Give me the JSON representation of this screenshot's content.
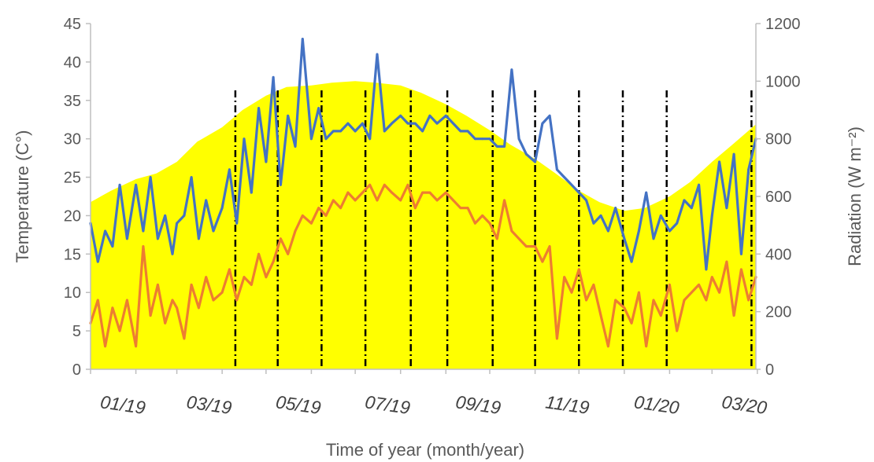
{
  "chart_data": {
    "type": "line",
    "title": "",
    "xlabel": "Time of year (month/year)",
    "ylabel_left": "Temperature  (C°)",
    "ylabel_right": "Radiation (W m⁻²)",
    "x_tick_labels": [
      "01/19",
      "03/19",
      "05/19",
      "07/19",
      "09/19",
      "11/19",
      "01/20",
      "03/20"
    ],
    "x_range": [
      "2019-01-01",
      "2020-03-31"
    ],
    "ylim_left": [
      0,
      45
    ],
    "yticks_left": [
      0,
      5,
      10,
      15,
      20,
      25,
      30,
      35,
      40,
      45
    ],
    "ylim_right": [
      0,
      1200
    ],
    "yticks_right": [
      0,
      200,
      400,
      600,
      800,
      1000,
      1200
    ],
    "grid": false,
    "legend": "none",
    "vertical_lines": {
      "style": "dash-dot",
      "color": "#000000",
      "dates": [
        "2019-04-10",
        "2019-05-09",
        "2019-06-08",
        "2019-07-08",
        "2019-08-08",
        "2019-09-02",
        "2019-10-03",
        "2019-11-01",
        "2019-12-01",
        "2019-12-31",
        "2020-01-30",
        "2020-03-28"
      ]
    },
    "series": [
      {
        "axis": "right",
        "style": "area",
        "color": "#ffff00",
        "x": [
          "2019-01-01",
          "2019-01-15",
          "2019-02-01",
          "2019-02-15",
          "2019-03-01",
          "2019-03-15",
          "2019-04-01",
          "2019-04-15",
          "2019-05-01",
          "2019-05-15",
          "2019-06-01",
          "2019-06-15",
          "2019-07-01",
          "2019-07-15",
          "2019-08-01",
          "2019-08-15",
          "2019-09-01",
          "2019-09-15",
          "2019-10-01",
          "2019-10-15",
          "2019-11-01",
          "2019-11-15",
          "2019-12-01",
          "2019-12-15",
          "2020-01-01",
          "2020-01-15",
          "2020-02-01",
          "2020-02-15",
          "2020-03-01",
          "2020-03-15",
          "2020-03-31"
        ],
        "values": [
          580,
          620,
          660,
          680,
          720,
          790,
          840,
          900,
          950,
          980,
          985,
          995,
          1000,
          995,
          985,
          960,
          920,
          880,
          830,
          780,
          730,
          680,
          620,
          580,
          550,
          560,
          600,
          650,
          720,
          780,
          850
        ]
      },
      {
        "axis": "left",
        "style": "line",
        "color": "#4472c4",
        "x": [
          "2019-01-01",
          "2019-01-06",
          "2019-01-11",
          "2019-01-16",
          "2019-01-21",
          "2019-01-26",
          "2019-02-01",
          "2019-02-06",
          "2019-02-11",
          "2019-02-16",
          "2019-02-21",
          "2019-02-26",
          "2019-03-01",
          "2019-03-06",
          "2019-03-11",
          "2019-03-16",
          "2019-03-21",
          "2019-03-26",
          "2019-04-01",
          "2019-04-06",
          "2019-04-11",
          "2019-04-16",
          "2019-04-21",
          "2019-04-26",
          "2019-05-01",
          "2019-05-06",
          "2019-05-11",
          "2019-05-16",
          "2019-05-21",
          "2019-05-26",
          "2019-06-01",
          "2019-06-06",
          "2019-06-11",
          "2019-06-16",
          "2019-06-21",
          "2019-06-26",
          "2019-07-01",
          "2019-07-06",
          "2019-07-11",
          "2019-07-16",
          "2019-07-21",
          "2019-07-26",
          "2019-08-01",
          "2019-08-06",
          "2019-08-11",
          "2019-08-16",
          "2019-08-21",
          "2019-08-26",
          "2019-09-01",
          "2019-09-06",
          "2019-09-11",
          "2019-09-16",
          "2019-09-21",
          "2019-09-26",
          "2019-10-01",
          "2019-10-06",
          "2019-10-11",
          "2019-10-16",
          "2019-10-21",
          "2019-10-26",
          "2019-11-01",
          "2019-11-06",
          "2019-11-11",
          "2019-11-16",
          "2019-11-21",
          "2019-11-26",
          "2019-12-01",
          "2019-12-06",
          "2019-12-11",
          "2019-12-16",
          "2019-12-21",
          "2019-12-26",
          "2020-01-01",
          "2020-01-06",
          "2020-01-11",
          "2020-01-16",
          "2020-01-21",
          "2020-01-26",
          "2020-02-01",
          "2020-02-06",
          "2020-02-11",
          "2020-02-16",
          "2020-02-21",
          "2020-02-26",
          "2020-03-01",
          "2020-03-06",
          "2020-03-11",
          "2020-03-16",
          "2020-03-21",
          "2020-03-26",
          "2020-03-31"
        ],
        "values": [
          19,
          14,
          18,
          16,
          24,
          17,
          24,
          18,
          25,
          17,
          20,
          15,
          19,
          20,
          25,
          17,
          22,
          18,
          21,
          26,
          19,
          30,
          23,
          34,
          27,
          38,
          24,
          33,
          29,
          43,
          30,
          34,
          30,
          31,
          31,
          32,
          31,
          32,
          30,
          41,
          31,
          32,
          33,
          32,
          32,
          31,
          33,
          32,
          33,
          32,
          31,
          31,
          30,
          30,
          30,
          29,
          29,
          39,
          30,
          28,
          27,
          32,
          33,
          26,
          25,
          24,
          23,
          22,
          19,
          20,
          18,
          21,
          17,
          14,
          18,
          23,
          17,
          20,
          18,
          19,
          22,
          21,
          24,
          13,
          20,
          27,
          21,
          28,
          15,
          26,
          30
        ]
      },
      {
        "axis": "left",
        "style": "line",
        "color": "#ed7d31",
        "x": [
          "2019-01-01",
          "2019-01-06",
          "2019-01-11",
          "2019-01-16",
          "2019-01-21",
          "2019-01-26",
          "2019-02-01",
          "2019-02-06",
          "2019-02-11",
          "2019-02-16",
          "2019-02-21",
          "2019-02-26",
          "2019-03-01",
          "2019-03-06",
          "2019-03-11",
          "2019-03-16",
          "2019-03-21",
          "2019-03-26",
          "2019-04-01",
          "2019-04-06",
          "2019-04-11",
          "2019-04-16",
          "2019-04-21",
          "2019-04-26",
          "2019-05-01",
          "2019-05-06",
          "2019-05-11",
          "2019-05-16",
          "2019-05-21",
          "2019-05-26",
          "2019-06-01",
          "2019-06-06",
          "2019-06-11",
          "2019-06-16",
          "2019-06-21",
          "2019-06-26",
          "2019-07-01",
          "2019-07-06",
          "2019-07-11",
          "2019-07-16",
          "2019-07-21",
          "2019-07-26",
          "2019-08-01",
          "2019-08-06",
          "2019-08-11",
          "2019-08-16",
          "2019-08-21",
          "2019-08-26",
          "2019-09-01",
          "2019-09-06",
          "2019-09-11",
          "2019-09-16",
          "2019-09-21",
          "2019-09-26",
          "2019-10-01",
          "2019-10-06",
          "2019-10-11",
          "2019-10-16",
          "2019-10-21",
          "2019-10-26",
          "2019-11-01",
          "2019-11-06",
          "2019-11-11",
          "2019-11-16",
          "2019-11-21",
          "2019-11-26",
          "2019-12-01",
          "2019-12-06",
          "2019-12-11",
          "2019-12-16",
          "2019-12-21",
          "2019-12-26",
          "2020-01-01",
          "2020-01-06",
          "2020-01-11",
          "2020-01-16",
          "2020-01-21",
          "2020-01-26",
          "2020-02-01",
          "2020-02-06",
          "2020-02-11",
          "2020-02-16",
          "2020-02-21",
          "2020-02-26",
          "2020-03-01",
          "2020-03-06",
          "2020-03-11",
          "2020-03-16",
          "2020-03-21",
          "2020-03-26",
          "2020-03-31"
        ],
        "values": [
          6,
          9,
          3,
          8,
          5,
          9,
          3,
          16,
          7,
          11,
          6,
          9,
          8,
          4,
          11,
          8,
          12,
          9,
          10,
          13,
          9,
          12,
          11,
          15,
          12,
          14,
          17,
          15,
          18,
          20,
          19,
          21,
          20,
          22,
          21,
          23,
          22,
          23,
          24,
          22,
          24,
          23,
          22,
          24,
          21,
          23,
          23,
          22,
          23,
          22,
          21,
          21,
          19,
          20,
          19,
          17,
          22,
          18,
          17,
          16,
          16,
          14,
          16,
          4,
          12,
          10,
          13,
          9,
          11,
          7,
          3,
          9,
          8,
          6,
          10,
          3,
          9,
          7,
          11,
          5,
          9,
          10,
          11,
          9,
          12,
          10,
          14,
          7,
          13,
          9,
          12
        ]
      }
    ]
  }
}
